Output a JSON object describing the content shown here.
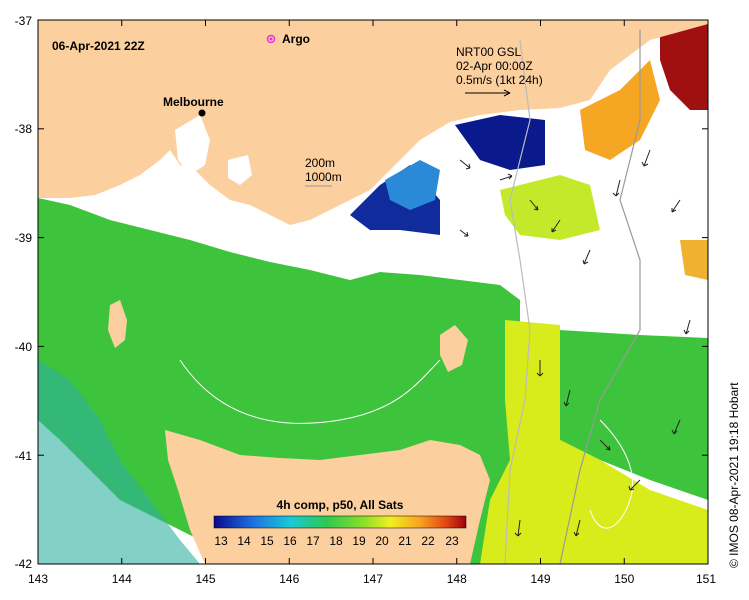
{
  "map": {
    "timestamp": "06-Apr-2021 22Z",
    "city": "Melbourne",
    "argo_label": "Argo",
    "current_info": [
      "NRT00 GSL",
      "02-Apr 00:00Z",
      "0.5m/s (1kt 24h)"
    ],
    "depth_labels": [
      "200m",
      "1000m"
    ],
    "credit": "© IMOS 08-Apr-2021 19:18 Hobart",
    "colorbar": {
      "title": "4h comp, p50, All Sats",
      "ticks": [
        "13",
        "14",
        "15",
        "16",
        "17",
        "18",
        "19",
        "20",
        "21",
        "22",
        "23"
      ]
    },
    "lon_ticks": [
      "143",
      "144",
      "145",
      "146",
      "147",
      "148",
      "149",
      "150",
      "151"
    ],
    "lat_ticks": [
      "-37",
      "-38",
      "-39",
      "-40",
      "-41",
      "-42"
    ],
    "colors": {
      "land": "#fccf9e",
      "argo": "#e830e8",
      "sst_green": "#3cc43c",
      "sst_yellow": "#e8f018",
      "sst_blue": "#0a1a8c"
    }
  }
}
